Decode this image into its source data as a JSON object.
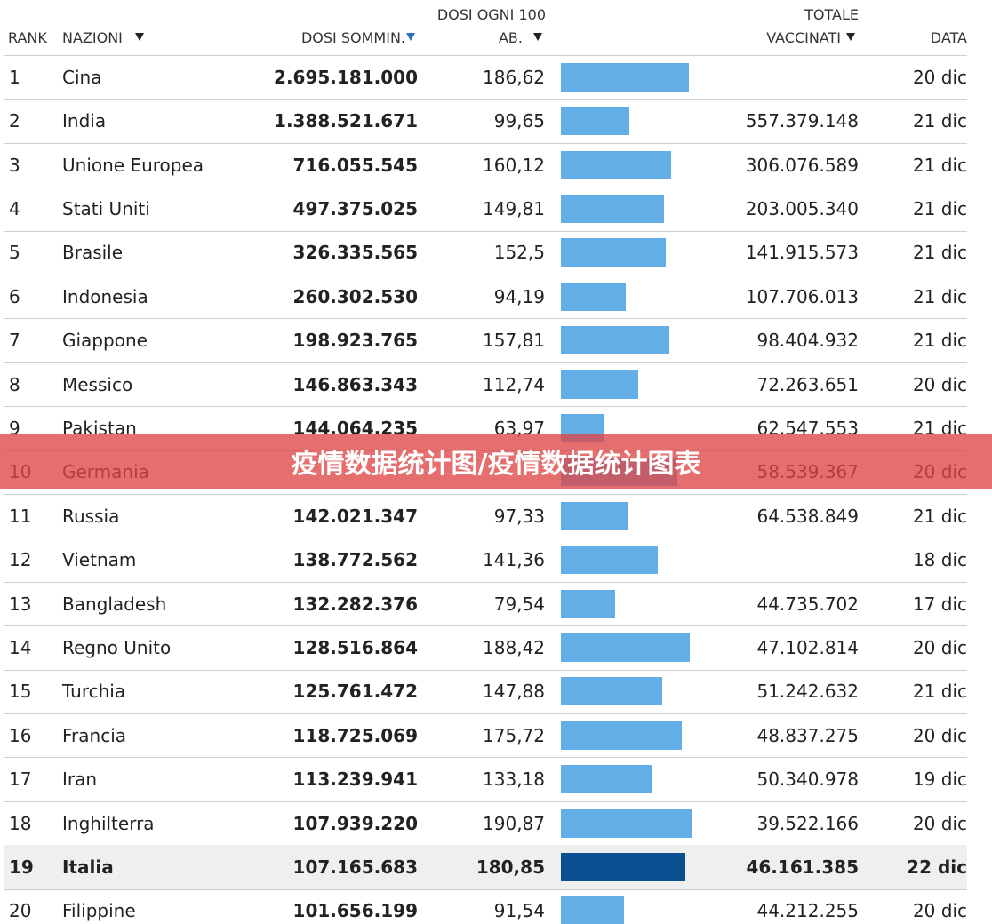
{
  "table": {
    "header": {
      "rank": "RANK",
      "country": "NAZIONI",
      "doses": "DOSI SOMMIN.",
      "per100_line1": "DOSI OGNI 100",
      "per100_line2": "AB.",
      "vaccinated_line1": "TOTALE",
      "vaccinated_line2": "VACCINATI",
      "date": "DATA"
    },
    "rows": [
      {
        "rank": "1",
        "country": "Cina",
        "doses": "2.695.181.000",
        "per100": {
          "value": 186.62,
          "label": "186,62"
        },
        "vaccinated": null,
        "date": "20 dic"
      },
      {
        "rank": "2",
        "country": "India",
        "doses": "1.388.521.671",
        "per100": {
          "value": 99.65,
          "label": "99,65"
        },
        "vaccinated": "557.379.148",
        "date": "21 dic"
      },
      {
        "rank": "3",
        "country": "Unione Europea",
        "doses": "716.055.545",
        "per100": {
          "value": 160.12,
          "label": "160,12"
        },
        "vaccinated": "306.076.589",
        "date": "21 dic"
      },
      {
        "rank": "4",
        "country": "Stati Uniti",
        "doses": "497.375.025",
        "per100": {
          "value": 149.81,
          "label": "149,81"
        },
        "vaccinated": "203.005.340",
        "date": "21 dic"
      },
      {
        "rank": "5",
        "country": "Brasile",
        "doses": "326.335.565",
        "per100": {
          "value": 152.5,
          "label": "152,5"
        },
        "vaccinated": "141.915.573",
        "date": "21 dic"
      },
      {
        "rank": "6",
        "country": "Indonesia",
        "doses": "260.302.530",
        "per100": {
          "value": 94.19,
          "label": "94,19"
        },
        "vaccinated": "107.706.013",
        "date": "21 dic"
      },
      {
        "rank": "7",
        "country": "Giappone",
        "doses": "198.923.765",
        "per100": {
          "value": 157.81,
          "label": "157,81"
        },
        "vaccinated": "98.404.932",
        "date": "21 dic"
      },
      {
        "rank": "8",
        "country": "Messico",
        "doses": "146.863.343",
        "per100": {
          "value": 112.74,
          "label": "112,74"
        },
        "vaccinated": "72.263.651",
        "date": "20 dic"
      },
      {
        "rank": "9",
        "country": "Pakistan",
        "doses": "144.064.235",
        "per100": {
          "value": 63.97,
          "label": "63,97"
        },
        "vaccinated": "62.547.553",
        "date": "21 dic"
      },
      {
        "rank": "10",
        "country": "Germania",
        "doses": null,
        "per100": {
          "value": 170
        },
        "vaccinated": "58.539.367",
        "date": "20 dic"
      },
      {
        "rank": "11",
        "country": "Russia",
        "doses": "142.021.347",
        "per100": {
          "value": 97.33,
          "label": "97,33"
        },
        "vaccinated": "64.538.849",
        "date": "21 dic"
      },
      {
        "rank": "12",
        "country": "Vietnam",
        "doses": "138.772.562",
        "per100": {
          "value": 141.36,
          "label": "141,36"
        },
        "vaccinated": null,
        "date": "18 dic"
      },
      {
        "rank": "13",
        "country": "Bangladesh",
        "doses": "132.282.376",
        "per100": {
          "value": 79.54,
          "label": "79,54"
        },
        "vaccinated": "44.735.702",
        "date": "17 dic"
      },
      {
        "rank": "14",
        "country": "Regno Unito",
        "doses": "128.516.864",
        "per100": {
          "value": 188.42,
          "label": "188,42"
        },
        "vaccinated": "47.102.814",
        "date": "20 dic"
      },
      {
        "rank": "15",
        "country": "Turchia",
        "doses": "125.761.472",
        "per100": {
          "value": 147.88,
          "label": "147,88"
        },
        "vaccinated": "51.242.632",
        "date": "21 dic"
      },
      {
        "rank": "16",
        "country": "Francia",
        "doses": "118.725.069",
        "per100": {
          "value": 175.72,
          "label": "175,72"
        },
        "vaccinated": "48.837.275",
        "date": "20 dic"
      },
      {
        "rank": "17",
        "country": "Iran",
        "doses": "113.239.941",
        "per100": {
          "value": 133.18,
          "label": "133,18"
        },
        "vaccinated": "50.340.978",
        "date": "19 dic"
      },
      {
        "rank": "18",
        "country": "Inghilterra",
        "doses": "107.939.220",
        "per100": {
          "value": 190.87,
          "label": "190,87"
        },
        "vaccinated": "39.522.166",
        "date": "20 dic"
      },
      {
        "rank": "19",
        "country": "Italia",
        "doses": "107.165.683",
        "per100": {
          "value": 180.85,
          "label": "180,85"
        },
        "vaccinated": "46.161.385",
        "date": "22 dic",
        "highlight": true
      },
      {
        "rank": "20",
        "country": "Filippine",
        "doses": "101.656.199",
        "per100": {
          "value": 91.54,
          "label": "91,54"
        },
        "vaccinated": "44.212.255",
        "date": "20 dic"
      }
    ]
  },
  "banner": "疫情数据统计图/疫情数据统计图表"
}
